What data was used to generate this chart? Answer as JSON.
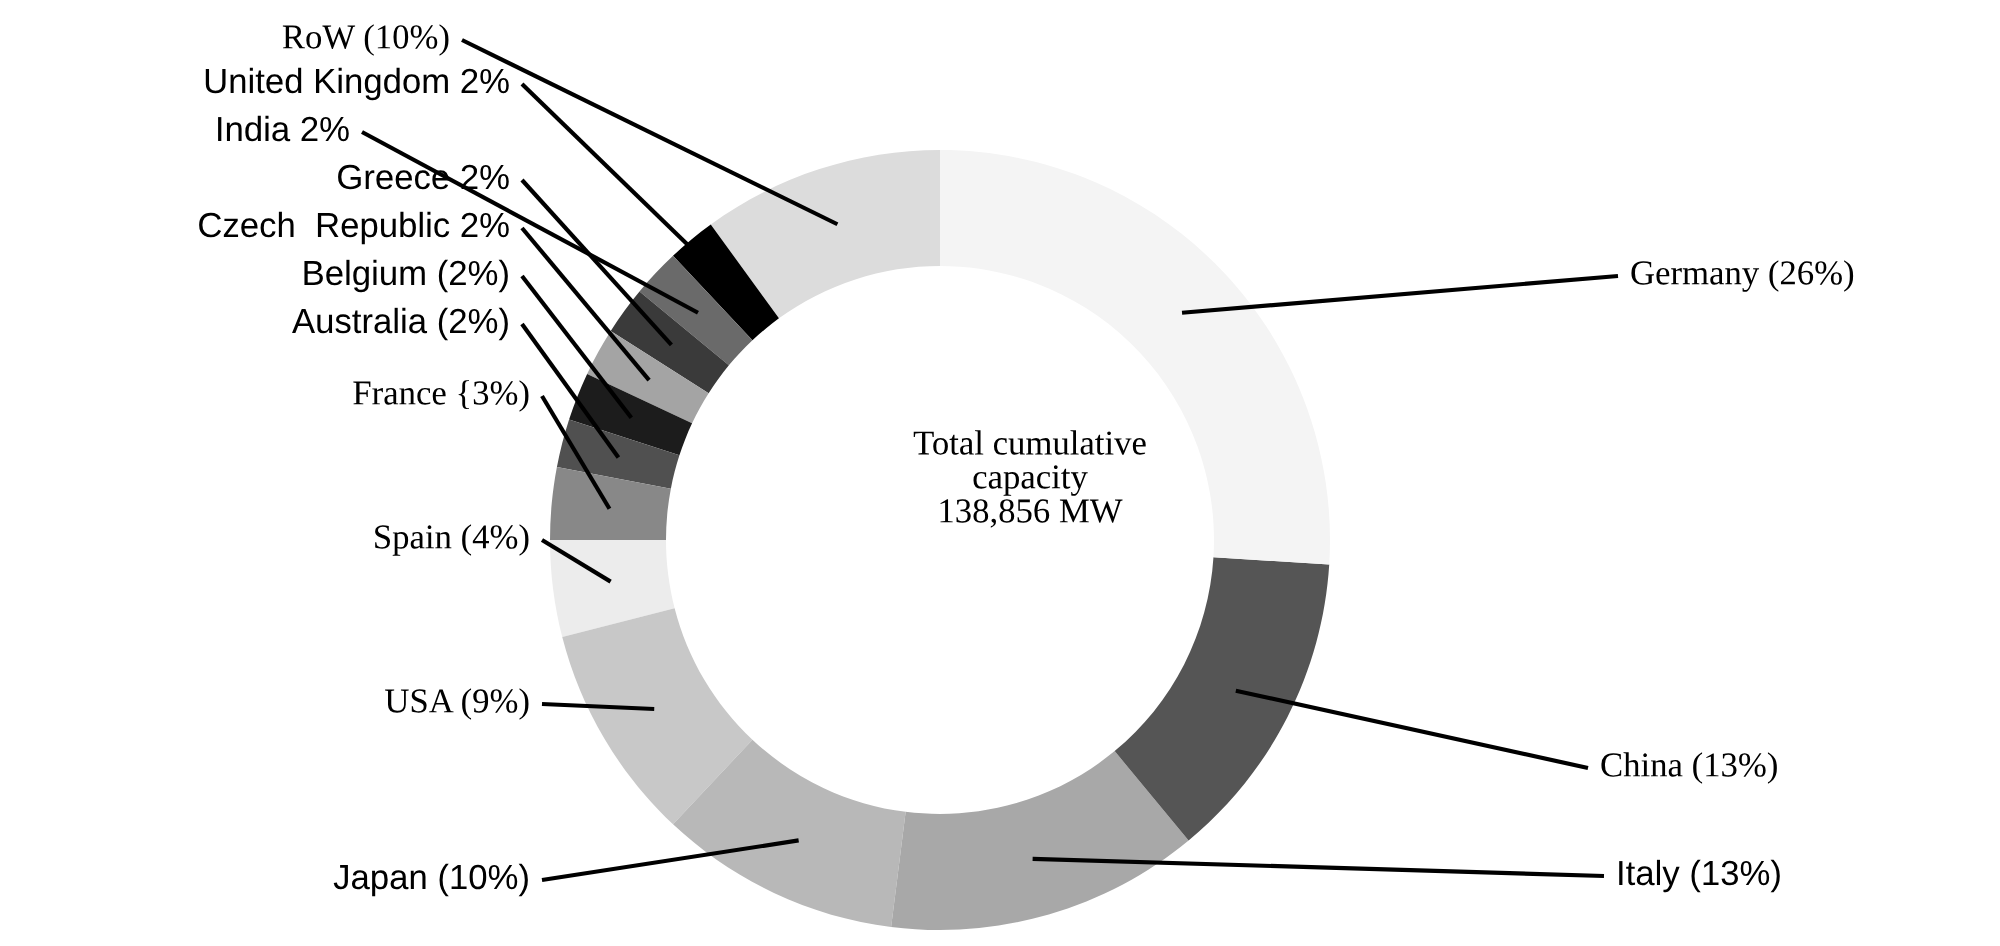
{
  "chart_data": {
    "type": "donut",
    "categories": [
      "RoW",
      "United Kingdom",
      "India",
      "Greece",
      "Czech  Republic",
      "Belgium",
      "Australia",
      "France",
      "Spain",
      "USA",
      "Japan",
      "Italy",
      "China",
      "Germany"
    ],
    "values": [
      10,
      2,
      2,
      2,
      2,
      2,
      2,
      3,
      4,
      9,
      10,
      13,
      13,
      26
    ],
    "value_labels": [
      "(10%)",
      "2%",
      "2%",
      "2%",
      "2%",
      "(2%)",
      "(2%)",
      "{3%)",
      "(4%)",
      "(9%)",
      "(10%)",
      "(13%)",
      "(13%)",
      "(26%)"
    ],
    "colors": [
      "#dcdcdc",
      "#000000",
      "#6a6a6a",
      "#3a3a3a",
      "#a4a4a4",
      "#1c1c1c",
      "#505050",
      "#888888",
      "#ececec",
      "#c8c8c8",
      "#b8b8b8",
      "#a8a8a8",
      "#555555",
      "#f4f4f4"
    ],
    "annotations": [
      "Total cumulative\ncapacity\n138,856 MW"
    ]
  }
}
